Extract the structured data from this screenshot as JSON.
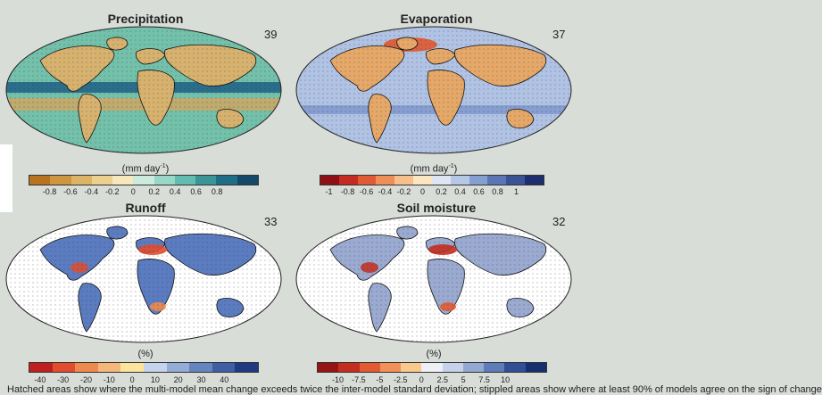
{
  "panels": [
    {
      "id": "precipitation",
      "title": "Precipitation",
      "number": "39",
      "unit_main": "(mm day",
      "unit_sup": "-1",
      "unit_end": ")",
      "ticks": [
        "-0.8",
        "-0.6",
        "-0.4",
        "-0.2",
        "0",
        "0.2",
        "0.4",
        "0.6",
        "0.8"
      ],
      "colors": [
        "#b9731e",
        "#cf9640",
        "#ddb465",
        "#ecd08e",
        "#f6e7bd",
        "#cdeadf",
        "#99d7c8",
        "#62bcaf",
        "#3a9596",
        "#1f6e86",
        "#134a6b"
      ],
      "ocean": "#73c1aa",
      "land": "#d7b26e"
    },
    {
      "id": "evaporation",
      "title": "Evaporation",
      "number": "37",
      "unit_main": "(mm day",
      "unit_sup": "-1",
      "unit_end": ")",
      "ticks": [
        "-1",
        "-0.8",
        "-0.6",
        "-0.4",
        "-0.2",
        "0",
        "0.2",
        "0.4",
        "0.6",
        "0.8",
        "1"
      ],
      "colors": [
        "#8e1016",
        "#c42b22",
        "#e05a35",
        "#ef8e57",
        "#f7c08a",
        "#fbe6c4",
        "#dde6f2",
        "#b5c8e6",
        "#869fd1",
        "#5a76b5",
        "#3a5396",
        "#1d2e6e"
      ],
      "ocean": "#b1c3e4",
      "land": "#e6a869"
    },
    {
      "id": "runoff",
      "title": "Runoff",
      "number": "33",
      "unit_main": "(%)",
      "unit_sup": "",
      "unit_end": "",
      "ticks": [
        "-40",
        "-30",
        "-20",
        "-10",
        "0",
        "10",
        "20",
        "30",
        "40"
      ],
      "colors": [
        "#bf1f1f",
        "#e04d2f",
        "#ef8a4e",
        "#f6b87a",
        "#fbe49c",
        "#c6d3ec",
        "#94acd6",
        "#6585bf",
        "#3e5fa3",
        "#1f3a80"
      ],
      "ocean": "#ffffff",
      "land": "#5b7cc0"
    },
    {
      "id": "soil-moisture",
      "title": "Soil moisture",
      "number": "32",
      "unit_main": "(%)",
      "unit_sup": "",
      "unit_end": "",
      "ticks": [
        "-10",
        "-7.5",
        "-5",
        "-2.5",
        "0",
        "2.5",
        "5",
        "7.5",
        "10"
      ],
      "colors": [
        "#961414",
        "#c42e20",
        "#e25b33",
        "#f2905a",
        "#f9c88c",
        "#eef0f6",
        "#c5d2ea",
        "#93a9d3",
        "#5d7cb9",
        "#2f4f96",
        "#172f6e"
      ],
      "ocean": "#ffffff",
      "land": "#9aaad0"
    }
  ],
  "caption_fragment": "Hatched areas show where the multi-model mean change exceeds twice the inter-model standard deviation; stippled areas show where at least 90% of models agree on the sign of change"
}
